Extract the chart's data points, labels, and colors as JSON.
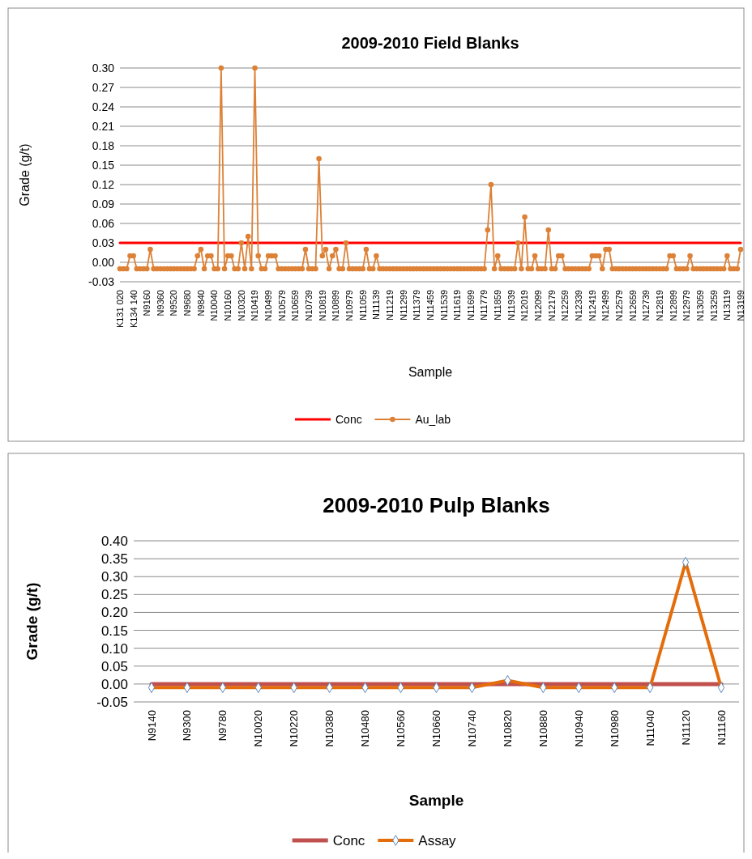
{
  "chart_data": [
    {
      "type": "line",
      "title": "2009-2010 Field Blanks",
      "xlabel": "Sample",
      "ylabel": "Grade (g/t)",
      "categories": [
        "K131  020",
        null,
        null,
        null,
        "K134  140",
        null,
        null,
        null,
        "N9160",
        null,
        null,
        null,
        "N9360",
        null,
        null,
        null,
        "N9520",
        null,
        null,
        null,
        "N9680",
        null,
        null,
        null,
        "N9840",
        null,
        null,
        null,
        "N10040",
        null,
        null,
        null,
        "N10160",
        null,
        null,
        null,
        "N10320",
        null,
        null,
        null,
        "N10419",
        null,
        null,
        null,
        "N10499",
        null,
        null,
        null,
        "N10579",
        null,
        null,
        null,
        "N10659",
        null,
        null,
        null,
        "N10739",
        null,
        null,
        null,
        "N10819",
        null,
        null,
        null,
        "N10899",
        null,
        null,
        null,
        "N10979",
        null,
        null,
        null,
        "N11059",
        null,
        null,
        null,
        "N11139",
        null,
        null,
        null,
        "N11219",
        null,
        null,
        null,
        "N11299",
        null,
        null,
        null,
        "N11379",
        null,
        null,
        null,
        "N11459",
        null,
        null,
        null,
        "N11539",
        null,
        null,
        null,
        "N11619",
        null,
        null,
        null,
        "N11699",
        null,
        null,
        null,
        "N11779",
        null,
        null,
        null,
        "N11859",
        null,
        null,
        null,
        "N11939",
        null,
        null,
        null,
        "N12019",
        null,
        null,
        null,
        "N12099",
        null,
        null,
        null,
        "N12179",
        null,
        null,
        null,
        "N12259",
        null,
        null,
        null,
        "N12339",
        null,
        null,
        null,
        "N12419",
        null,
        null,
        null,
        "N12499",
        null,
        null,
        null,
        "N12579",
        null,
        null,
        null,
        "N12659",
        null,
        null,
        null,
        "N12739",
        null,
        null,
        null,
        "N12819",
        null,
        null,
        null,
        "N12899",
        null,
        null,
        null,
        "N12979",
        null,
        null,
        null,
        "N13059",
        null,
        null,
        null,
        "N13259",
        null,
        null,
        null,
        "N13119",
        null,
        null,
        null,
        "N13199"
      ],
      "series": [
        {
          "name": "Conc",
          "color": "#ff0000",
          "marker": "none",
          "values": [
            0.03,
            0.03,
            0.03,
            0.03,
            0.03,
            0.03,
            0.03,
            0.03,
            0.03,
            0.03,
            0.03,
            0.03,
            0.03,
            0.03,
            0.03,
            0.03,
            0.03,
            0.03,
            0.03,
            0.03,
            0.03,
            0.03,
            0.03,
            0.03,
            0.03,
            0.03,
            0.03,
            0.03,
            0.03,
            0.03,
            0.03,
            0.03,
            0.03,
            0.03,
            0.03,
            0.03,
            0.03,
            0.03,
            0.03,
            0.03,
            0.03,
            0.03,
            0.03,
            0.03,
            0.03,
            0.03,
            0.03,
            0.03,
            0.03,
            0.03,
            0.03,
            0.03,
            0.03,
            0.03,
            0.03,
            0.03,
            0.03,
            0.03,
            0.03,
            0.03,
            0.03,
            0.03,
            0.03,
            0.03,
            0.03,
            0.03,
            0.03,
            0.03,
            0.03,
            0.03,
            0.03,
            0.03,
            0.03,
            0.03,
            0.03,
            0.03,
            0.03,
            0.03,
            0.03,
            0.03,
            0.03,
            0.03,
            0.03,
            0.03,
            0.03,
            0.03,
            0.03,
            0.03,
            0.03,
            0.03,
            0.03,
            0.03,
            0.03,
            0.03,
            0.03,
            0.03,
            0.03,
            0.03,
            0.03,
            0.03,
            0.03,
            0.03,
            0.03,
            0.03,
            0.03,
            0.03,
            0.03,
            0.03,
            0.03,
            0.03,
            0.03,
            0.03,
            0.03,
            0.03,
            0.03,
            0.03,
            0.03,
            0.03,
            0.03,
            0.03,
            0.03,
            0.03,
            0.03,
            0.03,
            0.03,
            0.03,
            0.03,
            0.03,
            0.03,
            0.03,
            0.03,
            0.03,
            0.03,
            0.03,
            0.03,
            0.03,
            0.03,
            0.03,
            0.03,
            0.03,
            0.03,
            0.03,
            0.03,
            0.03,
            0.03,
            0.03,
            0.03,
            0.03,
            0.03,
            0.03,
            0.03,
            0.03,
            0.03,
            0.03,
            0.03,
            0.03,
            0.03,
            0.03,
            0.03,
            0.03,
            0.03,
            0.03,
            0.03,
            0.03,
            0.03,
            0.03,
            0.03,
            0.03,
            0.03,
            0.03,
            0.03,
            0.03,
            0.03,
            0.03,
            0.03,
            0.03,
            0.03,
            0.03,
            0.03,
            0.03,
            0.03,
            0.03,
            0.03,
            0.03,
            0.03
          ]
        },
        {
          "name": "Au_lab",
          "color": "#dd8136",
          "marker": "circle",
          "values": [
            -0.01,
            -0.01,
            -0.01,
            0.01,
            0.01,
            -0.01,
            -0.01,
            -0.01,
            -0.01,
            0.02,
            -0.01,
            -0.01,
            -0.01,
            -0.01,
            -0.01,
            -0.01,
            -0.01,
            -0.01,
            -0.01,
            -0.01,
            -0.01,
            -0.01,
            -0.01,
            0.01,
            0.02,
            -0.01,
            0.01,
            0.01,
            -0.01,
            -0.01,
            0.3,
            -0.01,
            0.01,
            0.01,
            -0.01,
            -0.01,
            0.03,
            -0.01,
            0.04,
            -0.01,
            0.3,
            0.01,
            -0.01,
            -0.01,
            0.01,
            0.01,
            0.01,
            -0.01,
            -0.01,
            -0.01,
            -0.01,
            -0.01,
            -0.01,
            -0.01,
            -0.01,
            0.02,
            -0.01,
            -0.01,
            -0.01,
            0.16,
            0.01,
            0.02,
            -0.01,
            0.01,
            0.02,
            -0.01,
            -0.01,
            0.03,
            -0.01,
            -0.01,
            -0.01,
            -0.01,
            -0.01,
            0.02,
            -0.01,
            -0.01,
            0.01,
            -0.01,
            -0.01,
            -0.01,
            -0.01,
            -0.01,
            -0.01,
            -0.01,
            -0.01,
            -0.01,
            -0.01,
            -0.01,
            -0.01,
            -0.01,
            -0.01,
            -0.01,
            -0.01,
            -0.01,
            -0.01,
            -0.01,
            -0.01,
            -0.01,
            -0.01,
            -0.01,
            -0.01,
            -0.01,
            -0.01,
            -0.01,
            -0.01,
            -0.01,
            -0.01,
            -0.01,
            -0.01,
            0.05,
            0.12,
            -0.01,
            0.01,
            -0.01,
            -0.01,
            -0.01,
            -0.01,
            -0.01,
            0.03,
            -0.01,
            0.07,
            -0.01,
            -0.01,
            0.01,
            -0.01,
            -0.01,
            -0.01,
            0.05,
            -0.01,
            -0.01,
            0.01,
            0.01,
            -0.01,
            -0.01,
            -0.01,
            -0.01,
            -0.01,
            -0.01,
            -0.01,
            -0.01,
            0.01,
            0.01,
            0.01,
            -0.01,
            0.02,
            0.02,
            -0.01,
            -0.01,
            -0.01,
            -0.01,
            -0.01,
            -0.01,
            -0.01,
            -0.01,
            -0.01,
            -0.01,
            -0.01,
            -0.01,
            -0.01,
            -0.01,
            -0.01,
            -0.01,
            -0.01,
            0.01,
            0.01,
            -0.01,
            -0.01,
            -0.01,
            -0.01,
            0.01,
            -0.01,
            -0.01,
            -0.01,
            -0.01,
            -0.01,
            -0.01,
            -0.01,
            -0.01,
            -0.01,
            -0.01,
            0.01,
            -0.01,
            -0.01,
            -0.01,
            0.02
          ]
        }
      ],
      "ylim": [
        -0.03,
        0.3
      ],
      "yticks": [
        {
          "value": -0.03,
          "label": "-0.03"
        },
        {
          "value": 0,
          "label": "0.00"
        },
        {
          "value": 0.03,
          "label": "0.03"
        },
        {
          "value": 0.06,
          "label": "0.06"
        },
        {
          "value": 0.09,
          "label": "0.09"
        },
        {
          "value": 0.12,
          "label": "0.12"
        },
        {
          "value": 0.15,
          "label": "0.15"
        },
        {
          "value": 0.18,
          "label": "0.18"
        },
        {
          "value": 0.21,
          "label": "0.21"
        },
        {
          "value": 0.24,
          "label": "0.24"
        },
        {
          "value": 0.27,
          "label": "0.27"
        },
        {
          "value": 0.3,
          "label": "0.30"
        }
      ],
      "grid": "y",
      "legend": "bottom"
    },
    {
      "type": "line",
      "title": "2009-2010 Pulp Blanks",
      "xlabel": "Sample",
      "ylabel": "Grade (g/t)",
      "categories": [
        "N9140",
        "N9300",
        "N9780",
        "N10020",
        "N10220",
        "N10380",
        "N10480",
        "N10560",
        "N10660",
        "N10740",
        "N10820",
        "N10880",
        "N10940",
        "N10980",
        "N11040",
        "N11120",
        "N11160"
      ],
      "series": [
        {
          "name": "Conc",
          "color": "#c0504d",
          "marker": "none",
          "values": [
            0,
            0,
            0,
            0,
            0,
            0,
            0,
            0,
            0,
            0,
            0,
            0,
            0,
            0,
            0,
            0,
            0
          ]
        },
        {
          "name": "Assay",
          "color": "#e46c0a",
          "marker": "diamond",
          "values": [
            -0.01,
            -0.01,
            -0.01,
            -0.01,
            -0.01,
            -0.01,
            -0.01,
            -0.01,
            -0.01,
            -0.01,
            0.01,
            -0.01,
            -0.01,
            -0.01,
            -0.01,
            0.34,
            -0.01
          ]
        }
      ],
      "ylim": [
        -0.05,
        0.4
      ],
      "yticks": [
        {
          "value": -0.05,
          "label": "-0.05"
        },
        {
          "value": 0,
          "label": "0.00"
        },
        {
          "value": 0.05,
          "label": "0.05"
        },
        {
          "value": 0.1,
          "label": "0.10"
        },
        {
          "value": 0.15,
          "label": "0.15"
        },
        {
          "value": 0.2,
          "label": "0.20"
        },
        {
          "value": 0.25,
          "label": "0.25"
        },
        {
          "value": 0.3,
          "label": "0.30"
        },
        {
          "value": 0.35,
          "label": "0.35"
        },
        {
          "value": 0.4,
          "label": "0.40"
        }
      ],
      "grid": "y",
      "legend": "bottom"
    }
  ]
}
